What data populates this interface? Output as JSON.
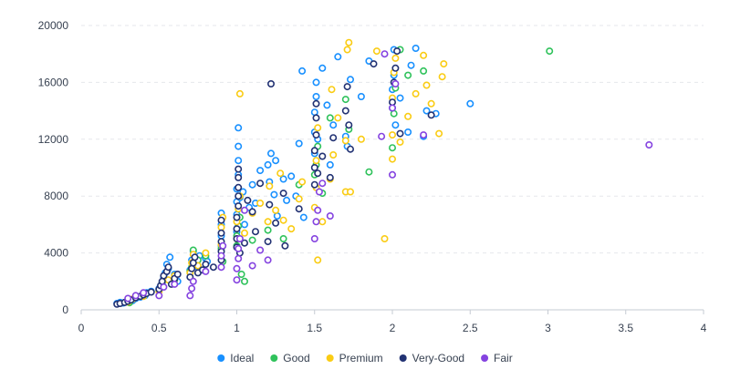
{
  "chart_data": {
    "type": "scatter",
    "title": "",
    "xlabel": "",
    "ylabel": "",
    "xlim": [
      0,
      4
    ],
    "ylim": [
      0,
      20000
    ],
    "x_ticks": [
      0,
      0.5,
      1,
      1.5,
      2,
      2.5,
      3,
      3.5,
      4
    ],
    "x_tick_labels": [
      "0",
      "0.5",
      "1",
      "1.5",
      "2",
      "2.5",
      "3",
      "3.5",
      "4"
    ],
    "y_ticks": [
      0,
      4000,
      8000,
      12000,
      16000,
      20000
    ],
    "y_tick_labels": [
      "0",
      "4000",
      "8000",
      "12000",
      "16000",
      "20000"
    ],
    "grid": "horizontal dashed",
    "legend_position": "bottom-center",
    "series": [
      {
        "name": "Ideal",
        "color": "#1890ff",
        "points": [
          [
            0.23,
            450
          ],
          [
            0.25,
            520
          ],
          [
            0.27,
            480
          ],
          [
            0.3,
            620
          ],
          [
            0.31,
            580
          ],
          [
            0.32,
            700
          ],
          [
            0.33,
            650
          ],
          [
            0.35,
            800
          ],
          [
            0.38,
            900
          ],
          [
            0.4,
            1100
          ],
          [
            0.41,
            1000
          ],
          [
            0.42,
            1200
          ],
          [
            0.45,
            1300
          ],
          [
            0.5,
            1500
          ],
          [
            0.52,
            1800
          ],
          [
            0.53,
            2300
          ],
          [
            0.54,
            2600
          ],
          [
            0.55,
            3200
          ],
          [
            0.56,
            2900
          ],
          [
            0.57,
            3700
          ],
          [
            0.6,
            2500
          ],
          [
            0.62,
            2000
          ],
          [
            0.7,
            2800
          ],
          [
            0.71,
            3500
          ],
          [
            0.72,
            4100
          ],
          [
            0.75,
            3000
          ],
          [
            0.76,
            3800
          ],
          [
            0.8,
            3600
          ],
          [
            0.81,
            3400
          ],
          [
            0.9,
            4500
          ],
          [
            0.9,
            5200
          ],
          [
            0.9,
            6000
          ],
          [
            0.9,
            6800
          ],
          [
            1.0,
            5500
          ],
          [
            1.0,
            6700
          ],
          [
            1.0,
            7600
          ],
          [
            1.0,
            8500
          ],
          [
            1.01,
            9500
          ],
          [
            1.01,
            10500
          ],
          [
            1.01,
            11500
          ],
          [
            1.01,
            12800
          ],
          [
            1.02,
            7900
          ],
          [
            1.04,
            8300
          ],
          [
            1.05,
            6000
          ],
          [
            1.08,
            7200
          ],
          [
            1.1,
            8800
          ],
          [
            1.12,
            7500
          ],
          [
            1.15,
            9800
          ],
          [
            1.2,
            10200
          ],
          [
            1.21,
            9000
          ],
          [
            1.22,
            11000
          ],
          [
            1.24,
            8100
          ],
          [
            1.25,
            10500
          ],
          [
            1.26,
            6600
          ],
          [
            1.3,
            9200
          ],
          [
            1.32,
            7700
          ],
          [
            1.35,
            9400
          ],
          [
            1.38,
            8000
          ],
          [
            1.4,
            11700
          ],
          [
            1.42,
            16800
          ],
          [
            1.43,
            6500
          ],
          [
            1.5,
            11000
          ],
          [
            1.5,
            12500
          ],
          [
            1.5,
            13900
          ],
          [
            1.51,
            15000
          ],
          [
            1.51,
            16000
          ],
          [
            1.52,
            12000
          ],
          [
            1.55,
            17000
          ],
          [
            1.58,
            14400
          ],
          [
            1.6,
            10200
          ],
          [
            1.62,
            13000
          ],
          [
            1.65,
            17800
          ],
          [
            1.7,
            12200
          ],
          [
            1.71,
            11500
          ],
          [
            1.73,
            16200
          ],
          [
            1.8,
            15000
          ],
          [
            1.85,
            17500
          ],
          [
            2.0,
            14200
          ],
          [
            2.0,
            15500
          ],
          [
            2.01,
            16500
          ],
          [
            2.01,
            18300
          ],
          [
            2.02,
            13000
          ],
          [
            2.05,
            14900
          ],
          [
            2.1,
            12500
          ],
          [
            2.12,
            17200
          ],
          [
            2.15,
            18400
          ],
          [
            2.2,
            12200
          ],
          [
            2.22,
            14000
          ],
          [
            2.28,
            13800
          ],
          [
            2.5,
            14500
          ]
        ]
      },
      {
        "name": "Good",
        "color": "#2fc25b",
        "points": [
          [
            0.3,
            700
          ],
          [
            0.31,
            500
          ],
          [
            0.35,
            900
          ],
          [
            0.4,
            1000
          ],
          [
            0.5,
            1400
          ],
          [
            0.52,
            1900
          ],
          [
            0.6,
            2100
          ],
          [
            0.7,
            2700
          ],
          [
            0.71,
            3000
          ],
          [
            0.72,
            4200
          ],
          [
            0.75,
            3500
          ],
          [
            0.8,
            3800
          ],
          [
            0.9,
            4300
          ],
          [
            0.91,
            3400
          ],
          [
            1.0,
            4500
          ],
          [
            1.0,
            5200
          ],
          [
            1.01,
            5900
          ],
          [
            1.02,
            6500
          ],
          [
            1.03,
            2500
          ],
          [
            1.05,
            2000
          ],
          [
            1.1,
            4900
          ],
          [
            1.2,
            5600
          ],
          [
            1.3,
            5000
          ],
          [
            1.4,
            8800
          ],
          [
            1.5,
            9500
          ],
          [
            1.51,
            10200
          ],
          [
            1.52,
            11500
          ],
          [
            1.55,
            8200
          ],
          [
            1.6,
            13500
          ],
          [
            1.7,
            14800
          ],
          [
            1.72,
            12700
          ],
          [
            1.85,
            9700
          ],
          [
            2.0,
            11400
          ],
          [
            2.01,
            13800
          ],
          [
            2.02,
            15600
          ],
          [
            2.05,
            18300
          ],
          [
            2.1,
            16500
          ],
          [
            2.2,
            16800
          ],
          [
            3.01,
            18200
          ]
        ]
      },
      {
        "name": "Premium",
        "color": "#facc14",
        "points": [
          [
            0.3,
            550
          ],
          [
            0.31,
            650
          ],
          [
            0.33,
            750
          ],
          [
            0.4,
            950
          ],
          [
            0.5,
            1300
          ],
          [
            0.51,
            1600
          ],
          [
            0.56,
            2100
          ],
          [
            0.6,
            2400
          ],
          [
            0.7,
            2600
          ],
          [
            0.71,
            3300
          ],
          [
            0.72,
            3900
          ],
          [
            0.75,
            3100
          ],
          [
            0.8,
            4000
          ],
          [
            0.9,
            4600
          ],
          [
            0.9,
            5800
          ],
          [
            0.91,
            6500
          ],
          [
            1.0,
            5000
          ],
          [
            1.0,
            6200
          ],
          [
            1.01,
            7100
          ],
          [
            1.02,
            8000
          ],
          [
            1.02,
            15200
          ],
          [
            1.05,
            5400
          ],
          [
            1.1,
            6800
          ],
          [
            1.15,
            7500
          ],
          [
            1.2,
            6200
          ],
          [
            1.21,
            8700
          ],
          [
            1.25,
            7000
          ],
          [
            1.28,
            9600
          ],
          [
            1.3,
            6300
          ],
          [
            1.35,
            5700
          ],
          [
            1.4,
            7800
          ],
          [
            1.42,
            9000
          ],
          [
            1.5,
            7200
          ],
          [
            1.51,
            8600
          ],
          [
            1.51,
            10500
          ],
          [
            1.52,
            12800
          ],
          [
            1.52,
            3500
          ],
          [
            1.55,
            6200
          ],
          [
            1.6,
            9200
          ],
          [
            1.61,
            15500
          ],
          [
            1.62,
            10900
          ],
          [
            1.65,
            13500
          ],
          [
            1.7,
            11900
          ],
          [
            1.7,
            8300
          ],
          [
            1.71,
            18300
          ],
          [
            1.72,
            18800
          ],
          [
            1.73,
            8300
          ],
          [
            1.8,
            12000
          ],
          [
            1.9,
            18200
          ],
          [
            1.95,
            5000
          ],
          [
            2.0,
            10600
          ],
          [
            2.0,
            12300
          ],
          [
            2.0,
            14900
          ],
          [
            2.01,
            16700
          ],
          [
            2.02,
            17700
          ],
          [
            2.05,
            11800
          ],
          [
            2.1,
            13600
          ],
          [
            2.15,
            15200
          ],
          [
            2.2,
            17900
          ],
          [
            2.22,
            15800
          ],
          [
            2.25,
            14500
          ],
          [
            2.3,
            12400
          ],
          [
            2.32,
            16400
          ],
          [
            2.33,
            17300
          ]
        ]
      },
      {
        "name": "Very-Good",
        "color": "#223273",
        "points": [
          [
            0.23,
            400
          ],
          [
            0.25,
            450
          ],
          [
            0.28,
            520
          ],
          [
            0.3,
            600
          ],
          [
            0.32,
            700
          ],
          [
            0.35,
            850
          ],
          [
            0.38,
            950
          ],
          [
            0.4,
            1050
          ],
          [
            0.42,
            1150
          ],
          [
            0.45,
            1250
          ],
          [
            0.5,
            1450
          ],
          [
            0.51,
            1700
          ],
          [
            0.52,
            2000
          ],
          [
            0.53,
            2400
          ],
          [
            0.55,
            2700
          ],
          [
            0.56,
            3000
          ],
          [
            0.58,
            1800
          ],
          [
            0.6,
            2200
          ],
          [
            0.62,
            2500
          ],
          [
            0.7,
            2300
          ],
          [
            0.71,
            2900
          ],
          [
            0.72,
            3300
          ],
          [
            0.73,
            3700
          ],
          [
            0.75,
            2600
          ],
          [
            0.78,
            2800
          ],
          [
            0.8,
            3200
          ],
          [
            0.85,
            3000
          ],
          [
            0.9,
            3500
          ],
          [
            0.9,
            4100
          ],
          [
            0.9,
            4800
          ],
          [
            0.9,
            5400
          ],
          [
            0.9,
            6300
          ],
          [
            1.0,
            4400
          ],
          [
            1.0,
            5000
          ],
          [
            1.0,
            5700
          ],
          [
            1.0,
            6500
          ],
          [
            1.01,
            7300
          ],
          [
            1.01,
            8000
          ],
          [
            1.01,
            8600
          ],
          [
            1.01,
            9300
          ],
          [
            1.01,
            9900
          ],
          [
            1.02,
            4000
          ],
          [
            1.05,
            4700
          ],
          [
            1.07,
            7700
          ],
          [
            1.1,
            6900
          ],
          [
            1.12,
            5500
          ],
          [
            1.15,
            8900
          ],
          [
            1.2,
            4800
          ],
          [
            1.21,
            7400
          ],
          [
            1.22,
            15900
          ],
          [
            1.25,
            6100
          ],
          [
            1.3,
            8200
          ],
          [
            1.31,
            4500
          ],
          [
            1.4,
            7100
          ],
          [
            1.5,
            8800
          ],
          [
            1.5,
            10000
          ],
          [
            1.5,
            11200
          ],
          [
            1.51,
            12300
          ],
          [
            1.51,
            13500
          ],
          [
            1.51,
            14500
          ],
          [
            1.52,
            9600
          ],
          [
            1.55,
            10800
          ],
          [
            1.6,
            9300
          ],
          [
            1.62,
            12100
          ],
          [
            1.7,
            14000
          ],
          [
            1.71,
            15700
          ],
          [
            1.72,
            13000
          ],
          [
            1.73,
            11300
          ],
          [
            1.88,
            17300
          ],
          [
            2.0,
            14600
          ],
          [
            2.01,
            16000
          ],
          [
            2.02,
            17000
          ],
          [
            2.03,
            18200
          ],
          [
            2.05,
            12400
          ],
          [
            2.25,
            13700
          ]
        ]
      },
      {
        "name": "Fair",
        "color": "#8543e0",
        "points": [
          [
            0.3,
            800
          ],
          [
            0.35,
            1000
          ],
          [
            0.4,
            1200
          ],
          [
            0.5,
            1000
          ],
          [
            0.53,
            1600
          ],
          [
            0.6,
            1800
          ],
          [
            0.7,
            1000
          ],
          [
            0.71,
            1500
          ],
          [
            0.72,
            2000
          ],
          [
            0.8,
            2700
          ],
          [
            0.9,
            3000
          ],
          [
            0.9,
            3800
          ],
          [
            0.91,
            4500
          ],
          [
            1.0,
            2100
          ],
          [
            1.0,
            2900
          ],
          [
            1.01,
            3600
          ],
          [
            1.01,
            4300
          ],
          [
            1.02,
            5000
          ],
          [
            1.05,
            7000
          ],
          [
            1.1,
            3100
          ],
          [
            1.15,
            4200
          ],
          [
            1.2,
            3500
          ],
          [
            1.5,
            5000
          ],
          [
            1.51,
            6200
          ],
          [
            1.52,
            7000
          ],
          [
            1.53,
            8300
          ],
          [
            1.55,
            8900
          ],
          [
            1.6,
            6600
          ],
          [
            1.93,
            12200
          ],
          [
            1.95,
            18000
          ],
          [
            2.0,
            9500
          ],
          [
            2.0,
            14200
          ],
          [
            2.02,
            15900
          ],
          [
            2.2,
            12300
          ],
          [
            3.65,
            11600
          ]
        ]
      }
    ]
  }
}
